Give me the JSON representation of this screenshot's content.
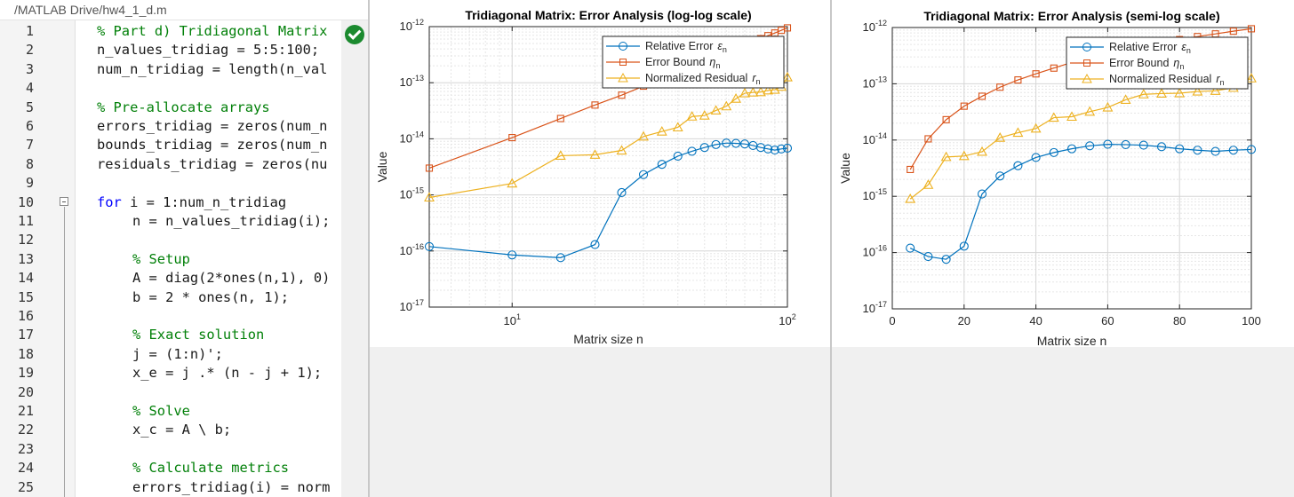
{
  "editor": {
    "path": "/MATLAB Drive/hw4_1_d.m",
    "lines": [
      {
        "num": "1",
        "text": "% Part d) Tridiagonal Matrix",
        "kind": "cmt",
        "indent": 0
      },
      {
        "num": "2",
        "text": "n_values_tridiag = 5:5:100;",
        "kind": "code",
        "indent": 0
      },
      {
        "num": "3",
        "text": "num_n_tridiag = length(n_val",
        "kind": "code",
        "indent": 0
      },
      {
        "num": "4",
        "text": "",
        "kind": "code",
        "indent": 0
      },
      {
        "num": "5",
        "text": "% Pre-allocate arrays",
        "kind": "cmt",
        "indent": 0
      },
      {
        "num": "6",
        "text": "errors_tridiag = zeros(num_n",
        "kind": "code",
        "indent": 0
      },
      {
        "num": "7",
        "text": "bounds_tridiag = zeros(num_n",
        "kind": "code",
        "indent": 0
      },
      {
        "num": "8",
        "text": "residuals_tridiag = zeros(nu",
        "kind": "code",
        "indent": 0
      },
      {
        "num": "9",
        "text": "",
        "kind": "code",
        "indent": 0
      },
      {
        "num": "10",
        "text": "for",
        "rest": " i = 1:num_n_tridiag",
        "kind": "kw",
        "indent": 0
      },
      {
        "num": "11",
        "text": "n = n_values_tridiag(i);",
        "kind": "code",
        "indent": 1
      },
      {
        "num": "12",
        "text": "",
        "kind": "code",
        "indent": 1
      },
      {
        "num": "13",
        "text": "% Setup",
        "kind": "cmt",
        "indent": 1
      },
      {
        "num": "14",
        "text": "A = diag(2*ones(n,1), 0)",
        "kind": "code",
        "indent": 1
      },
      {
        "num": "15",
        "text": "b = 2 * ones(n, 1);",
        "kind": "code",
        "indent": 1
      },
      {
        "num": "16",
        "text": "",
        "kind": "code",
        "indent": 1
      },
      {
        "num": "17",
        "text": "% Exact solution",
        "kind": "cmt",
        "indent": 1
      },
      {
        "num": "18",
        "text": "j = (1:n)';",
        "kind": "code",
        "indent": 1
      },
      {
        "num": "19",
        "text": "x_e = j .* (n - j + 1);",
        "kind": "code",
        "indent": 1
      },
      {
        "num": "20",
        "text": "",
        "kind": "code",
        "indent": 1
      },
      {
        "num": "21",
        "text": "% Solve",
        "kind": "cmt",
        "indent": 1
      },
      {
        "num": "22",
        "text": "x_c = A \\ b;",
        "kind": "code",
        "indent": 1
      },
      {
        "num": "23",
        "text": "",
        "kind": "code",
        "indent": 1
      },
      {
        "num": "24",
        "text": "% Calculate metrics",
        "kind": "cmt",
        "indent": 1
      },
      {
        "num": "25",
        "text": "errors_tridiag(i) = norm",
        "kind": "code",
        "indent": 1
      }
    ]
  },
  "colors": {
    "relative_error": "#0072bd",
    "error_bound": "#d95319",
    "residual": "#edb120"
  },
  "chart_data": [
    {
      "type": "line",
      "title": "Tridiagonal Matrix: Error Analysis (log-log scale)",
      "xlabel": "Matrix size n",
      "ylabel": "Value",
      "xscale": "log",
      "yscale": "log",
      "xlim": [
        5,
        100
      ],
      "ylim": [
        1e-17,
        1e-12
      ],
      "xticks": [
        {
          "v": 10,
          "base": "10",
          "exp": "1"
        },
        {
          "v": 100,
          "base": "10",
          "exp": "2"
        }
      ],
      "yticks": [
        {
          "v": 1e-17,
          "base": "10",
          "exp": "-17"
        },
        {
          "v": 1e-16,
          "base": "10",
          "exp": "-16"
        },
        {
          "v": 1e-15,
          "base": "10",
          "exp": "-15"
        },
        {
          "v": 1e-14,
          "base": "10",
          "exp": "-14"
        },
        {
          "v": 1e-13,
          "base": "10",
          "exp": "-13"
        },
        {
          "v": 1e-12,
          "base": "10",
          "exp": "-12"
        }
      ],
      "grid": true,
      "legend_position": "top-right",
      "x": [
        5,
        10,
        15,
        20,
        25,
        30,
        35,
        40,
        45,
        50,
        55,
        60,
        65,
        70,
        75,
        80,
        85,
        90,
        95,
        100
      ],
      "series": [
        {
          "key": "err",
          "name": "Relative Error",
          "sym": "ε",
          "sub": "n",
          "marker": "circle",
          "values": [
            1.2e-16,
            8.5e-17,
            7.6e-17,
            1.3e-16,
            1.1e-15,
            2.3e-15,
            3.5e-15,
            4.9e-15,
            6e-15,
            7e-15,
            7.9e-15,
            8.4e-15,
            8.3e-15,
            8.1e-15,
            7.6e-15,
            7e-15,
            6.6e-15,
            6.3e-15,
            6.6e-15,
            6.8e-15
          ]
        },
        {
          "key": "bnd",
          "name": "Error Bound",
          "sym": "η",
          "sub": "n",
          "marker": "square",
          "values": [
            3e-15,
            1.05e-14,
            2.3e-14,
            4e-14,
            6e-14,
            8.7e-14,
            1.17e-13,
            1.5e-13,
            1.9e-13,
            2.4e-13,
            2.9e-13,
            3.4e-13,
            4e-13,
            4.7e-13,
            5.4e-13,
            6.1e-13,
            6.9e-13,
            7.7e-13,
            8.6e-13,
            9.5e-13
          ]
        },
        {
          "key": "res",
          "name": "Normalized Residual",
          "sym": "r",
          "sub": "n",
          "marker": "triangle",
          "values": [
            9e-16,
            1.6e-15,
            5e-15,
            5.2e-15,
            6.2e-15,
            1.1e-14,
            1.35e-14,
            1.6e-14,
            2.5e-14,
            2.6e-14,
            3.2e-14,
            3.8e-14,
            5.2e-14,
            6.5e-14,
            6.7e-14,
            6.8e-14,
            7.3e-14,
            7.5e-14,
            8.5e-14,
            1.25e-13
          ]
        }
      ]
    },
    {
      "type": "line",
      "title": "Tridiagonal Matrix: Error Analysis (semi-log scale)",
      "xlabel": "Matrix size n",
      "ylabel": "Value",
      "xscale": "linear",
      "yscale": "log",
      "xlim": [
        0,
        100
      ],
      "ylim": [
        1e-17,
        1e-12
      ],
      "xticks": [
        {
          "v": 0,
          "label": "0"
        },
        {
          "v": 20,
          "label": "20"
        },
        {
          "v": 40,
          "label": "40"
        },
        {
          "v": 60,
          "label": "60"
        },
        {
          "v": 80,
          "label": "80"
        },
        {
          "v": 100,
          "label": "100"
        }
      ],
      "yticks": [
        {
          "v": 1e-17,
          "base": "10",
          "exp": "-17"
        },
        {
          "v": 1e-16,
          "base": "10",
          "exp": "-16"
        },
        {
          "v": 1e-15,
          "base": "10",
          "exp": "-15"
        },
        {
          "v": 1e-14,
          "base": "10",
          "exp": "-14"
        },
        {
          "v": 1e-13,
          "base": "10",
          "exp": "-13"
        },
        {
          "v": 1e-12,
          "base": "10",
          "exp": "-12"
        }
      ],
      "grid": true,
      "legend_position": "top-right",
      "x": [
        5,
        10,
        15,
        20,
        25,
        30,
        35,
        40,
        45,
        50,
        55,
        60,
        65,
        70,
        75,
        80,
        85,
        90,
        95,
        100
      ],
      "series": [
        {
          "key": "err",
          "name": "Relative Error",
          "sym": "ε",
          "sub": "n",
          "marker": "circle",
          "values": [
            1.2e-16,
            8.5e-17,
            7.6e-17,
            1.3e-16,
            1.1e-15,
            2.3e-15,
            3.5e-15,
            4.9e-15,
            6e-15,
            7e-15,
            7.9e-15,
            8.4e-15,
            8.3e-15,
            8.1e-15,
            7.6e-15,
            7e-15,
            6.6e-15,
            6.3e-15,
            6.6e-15,
            6.8e-15
          ]
        },
        {
          "key": "bnd",
          "name": "Error Bound",
          "sym": "η",
          "sub": "n",
          "marker": "square",
          "values": [
            3e-15,
            1.05e-14,
            2.3e-14,
            4e-14,
            6e-14,
            8.7e-14,
            1.17e-13,
            1.5e-13,
            1.9e-13,
            2.4e-13,
            2.9e-13,
            3.4e-13,
            4e-13,
            4.7e-13,
            5.4e-13,
            6.1e-13,
            6.9e-13,
            7.7e-13,
            8.6e-13,
            9.5e-13
          ]
        },
        {
          "key": "res",
          "name": "Normalized Residual",
          "sym": "r",
          "sub": "n",
          "marker": "triangle",
          "values": [
            9e-16,
            1.6e-15,
            5e-15,
            5.2e-15,
            6.2e-15,
            1.1e-14,
            1.35e-14,
            1.6e-14,
            2.5e-14,
            2.6e-14,
            3.2e-14,
            3.8e-14,
            5.2e-14,
            6.5e-14,
            6.7e-14,
            6.8e-14,
            7.3e-14,
            7.5e-14,
            8.5e-14,
            1.25e-13
          ]
        }
      ]
    }
  ]
}
